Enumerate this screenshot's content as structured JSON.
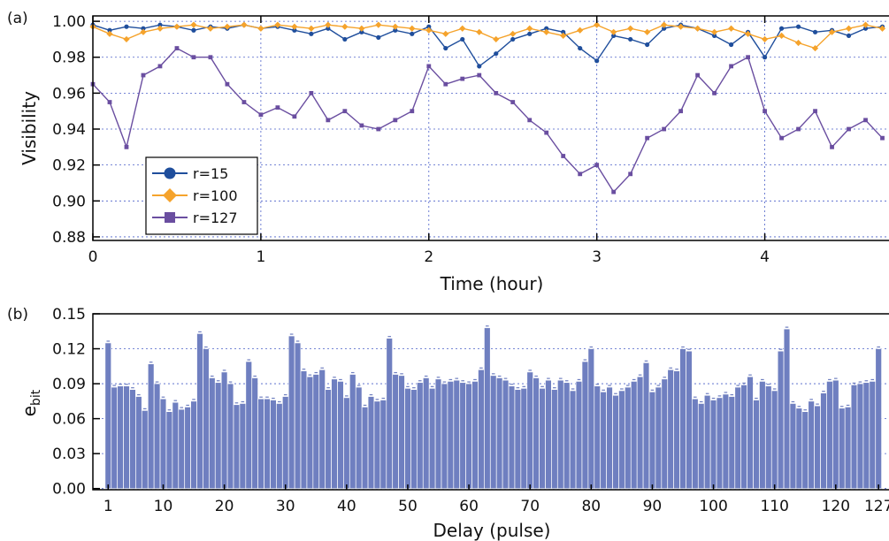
{
  "colors": {
    "r15": "#1f4e9c",
    "r100": "#f5a32c",
    "r127": "#6a4ea0",
    "bar": "#6f7fc0",
    "bar_edge": "#ffffff",
    "grid": "#4a5fc8"
  },
  "chart_data": [
    {
      "panel_label": "(a)",
      "type": "line",
      "xlabel": "Time (hour)",
      "ylabel": "Visibility",
      "xlim": [
        0,
        4.75
      ],
      "ylim": [
        0.878,
        1.003
      ],
      "xticks": [
        "0",
        "1",
        "2",
        "3",
        "4"
      ],
      "yticks": [
        "0.88",
        "0.90",
        "0.92",
        "0.94",
        "0.96",
        "0.98",
        "1.00"
      ],
      "grid": true,
      "legend_position": "lower-left",
      "series": [
        {
          "name": "r=15",
          "marker": "circle",
          "x": [
            0.0,
            0.1,
            0.2,
            0.3,
            0.4,
            0.5,
            0.6,
            0.7,
            0.8,
            0.9,
            1.0,
            1.1,
            1.2,
            1.3,
            1.4,
            1.5,
            1.6,
            1.7,
            1.8,
            1.9,
            2.0,
            2.1,
            2.2,
            2.3,
            2.4,
            2.5,
            2.6,
            2.7,
            2.8,
            2.9,
            3.0,
            3.1,
            3.2,
            3.3,
            3.4,
            3.5,
            3.6,
            3.7,
            3.8,
            3.9,
            4.0,
            4.1,
            4.2,
            4.3,
            4.4,
            4.5,
            4.6,
            4.7
          ],
          "values": [
            0.998,
            0.995,
            0.997,
            0.996,
            0.998,
            0.997,
            0.995,
            0.997,
            0.996,
            0.998,
            0.996,
            0.997,
            0.995,
            0.993,
            0.996,
            0.99,
            0.994,
            0.991,
            0.995,
            0.993,
            0.997,
            0.985,
            0.99,
            0.975,
            0.982,
            0.99,
            0.993,
            0.996,
            0.994,
            0.985,
            0.978,
            0.992,
            0.99,
            0.987,
            0.996,
            0.998,
            0.996,
            0.992,
            0.987,
            0.994,
            0.98,
            0.996,
            0.997,
            0.994,
            0.995,
            0.992,
            0.996,
            0.997
          ]
        },
        {
          "name": "r=100",
          "marker": "diamond",
          "x": [
            0.0,
            0.1,
            0.2,
            0.3,
            0.4,
            0.5,
            0.6,
            0.7,
            0.8,
            0.9,
            1.0,
            1.1,
            1.2,
            1.3,
            1.4,
            1.5,
            1.6,
            1.7,
            1.8,
            1.9,
            2.0,
            2.1,
            2.2,
            2.3,
            2.4,
            2.5,
            2.6,
            2.7,
            2.8,
            2.9,
            3.0,
            3.1,
            3.2,
            3.3,
            3.4,
            3.5,
            3.6,
            3.7,
            3.8,
            3.9,
            4.0,
            4.1,
            4.2,
            4.3,
            4.4,
            4.5,
            4.6,
            4.7
          ],
          "values": [
            0.997,
            0.993,
            0.99,
            0.994,
            0.996,
            0.997,
            0.998,
            0.996,
            0.997,
            0.998,
            0.996,
            0.998,
            0.997,
            0.996,
            0.998,
            0.997,
            0.996,
            0.998,
            0.997,
            0.996,
            0.995,
            0.993,
            0.996,
            0.994,
            0.99,
            0.993,
            0.996,
            0.994,
            0.992,
            0.995,
            0.998,
            0.994,
            0.996,
            0.994,
            0.998,
            0.997,
            0.996,
            0.994,
            0.996,
            0.993,
            0.99,
            0.992,
            0.988,
            0.985,
            0.994,
            0.996,
            0.998,
            0.996
          ]
        },
        {
          "name": "r=127",
          "marker": "square",
          "x": [
            0.0,
            0.1,
            0.2,
            0.3,
            0.4,
            0.5,
            0.6,
            0.7,
            0.8,
            0.9,
            1.0,
            1.1,
            1.2,
            1.3,
            1.4,
            1.5,
            1.6,
            1.7,
            1.8,
            1.9,
            2.0,
            2.1,
            2.2,
            2.3,
            2.4,
            2.5,
            2.6,
            2.7,
            2.8,
            2.9,
            3.0,
            3.1,
            3.2,
            3.3,
            3.4,
            3.5,
            3.6,
            3.7,
            3.8,
            3.9,
            4.0,
            4.1,
            4.2,
            4.3,
            4.4,
            4.5,
            4.6,
            4.7
          ],
          "values": [
            0.965,
            0.955,
            0.93,
            0.97,
            0.975,
            0.985,
            0.98,
            0.98,
            0.965,
            0.955,
            0.948,
            0.952,
            0.947,
            0.96,
            0.945,
            0.95,
            0.942,
            0.94,
            0.945,
            0.95,
            0.975,
            0.965,
            0.968,
            0.97,
            0.96,
            0.955,
            0.945,
            0.938,
            0.925,
            0.915,
            0.92,
            0.905,
            0.915,
            0.935,
            0.94,
            0.95,
            0.97,
            0.96,
            0.975,
            0.98,
            0.95,
            0.935,
            0.94,
            0.95,
            0.93,
            0.94,
            0.945,
            0.935
          ]
        }
      ]
    },
    {
      "panel_label": "(b)",
      "type": "bar",
      "xlabel": "Delay (pulse)",
      "ylabel": "e_bit",
      "ylabel_main": "e",
      "ylabel_sub": "bit",
      "xlim": [
        -1.5,
        129
      ],
      "ylim": [
        -0.001,
        0.15
      ],
      "xticks": [
        "1",
        "10",
        "20",
        "30",
        "40",
        "50",
        "60",
        "70",
        "80",
        "90",
        "100",
        "110",
        "120",
        "127"
      ],
      "yticks": [
        "0.00",
        "0.03",
        "0.06",
        "0.09",
        "0.12",
        "0.15"
      ],
      "grid": true,
      "categories": [
        1,
        2,
        3,
        4,
        5,
        6,
        7,
        8,
        9,
        10,
        11,
        12,
        13,
        14,
        15,
        16,
        17,
        18,
        19,
        20,
        21,
        22,
        23,
        24,
        25,
        26,
        27,
        28,
        29,
        30,
        31,
        32,
        33,
        34,
        35,
        36,
        37,
        38,
        39,
        40,
        41,
        42,
        43,
        44,
        45,
        46,
        47,
        48,
        49,
        50,
        51,
        52,
        53,
        54,
        55,
        56,
        57,
        58,
        59,
        60,
        61,
        62,
        63,
        64,
        65,
        66,
        67,
        68,
        69,
        70,
        71,
        72,
        73,
        74,
        75,
        76,
        77,
        78,
        79,
        80,
        81,
        82,
        83,
        84,
        85,
        86,
        87,
        88,
        89,
        90,
        91,
        92,
        93,
        94,
        95,
        96,
        97,
        98,
        99,
        100,
        101,
        102,
        103,
        104,
        105,
        106,
        107,
        108,
        109,
        110,
        111,
        112,
        113,
        114,
        115,
        116,
        117,
        118,
        119,
        120,
        121,
        122,
        123,
        124,
        125,
        126,
        127
      ],
      "values": [
        0.125,
        0.087,
        0.088,
        0.088,
        0.085,
        0.079,
        0.067,
        0.107,
        0.09,
        0.077,
        0.066,
        0.074,
        0.068,
        0.07,
        0.075,
        0.133,
        0.12,
        0.095,
        0.091,
        0.1,
        0.09,
        0.072,
        0.073,
        0.109,
        0.095,
        0.077,
        0.077,
        0.076,
        0.073,
        0.079,
        0.131,
        0.125,
        0.101,
        0.096,
        0.098,
        0.102,
        0.085,
        0.094,
        0.092,
        0.078,
        0.098,
        0.087,
        0.07,
        0.079,
        0.075,
        0.076,
        0.129,
        0.098,
        0.097,
        0.086,
        0.085,
        0.091,
        0.095,
        0.086,
        0.094,
        0.09,
        0.092,
        0.093,
        0.091,
        0.09,
        0.092,
        0.102,
        0.138,
        0.097,
        0.095,
        0.093,
        0.088,
        0.085,
        0.086,
        0.1,
        0.095,
        0.086,
        0.093,
        0.085,
        0.093,
        0.091,
        0.084,
        0.092,
        0.109,
        0.12,
        0.088,
        0.083,
        0.087,
        0.08,
        0.084,
        0.087,
        0.092,
        0.096,
        0.108,
        0.083,
        0.087,
        0.094,
        0.102,
        0.101,
        0.12,
        0.118,
        0.077,
        0.073,
        0.08,
        0.076,
        0.078,
        0.081,
        0.079,
        0.087,
        0.089,
        0.096,
        0.076,
        0.092,
        0.088,
        0.084,
        0.118,
        0.137,
        0.073,
        0.069,
        0.066,
        0.075,
        0.071,
        0.082,
        0.092,
        0.093,
        0.069,
        0.07,
        0.089,
        0.09,
        0.091,
        0.092,
        0.12
      ]
    }
  ]
}
